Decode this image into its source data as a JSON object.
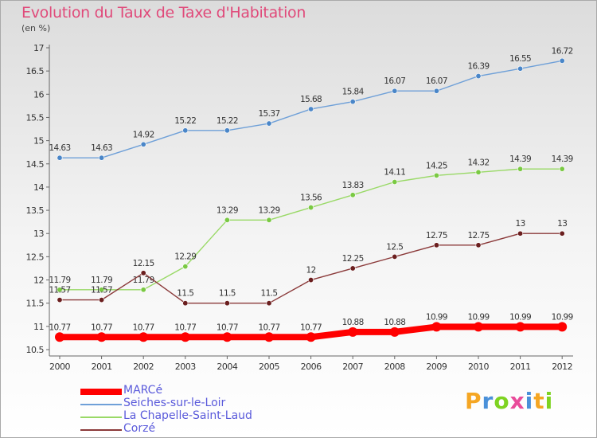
{
  "chart_data": {
    "type": "line",
    "title": "Evolution du Taux de Taxe d'Habitation",
    "subtitle": "(en %)",
    "x": [
      "2000",
      "2001",
      "2002",
      "2003",
      "2004",
      "2005",
      "2006",
      "2007",
      "2008",
      "2009",
      "2010",
      "2011",
      "2012"
    ],
    "ylim": [
      10.5,
      17
    ],
    "yticks": [
      "10.5",
      "11",
      "11.5",
      "12",
      "12.5",
      "13",
      "13.5",
      "14",
      "14.5",
      "15",
      "15.5",
      "16",
      "16.5",
      "17"
    ],
    "grid": false,
    "legend_position": "bottom-left",
    "series": [
      {
        "name": "MARCé",
        "color": "#ff0000",
        "values": [
          10.77,
          10.77,
          10.77,
          10.77,
          10.77,
          10.77,
          10.77,
          10.88,
          10.88,
          10.99,
          10.99,
          10.99,
          10.99
        ],
        "labels": [
          "10.77",
          "10.77",
          "10.77",
          "10.77",
          "10.77",
          "10.77",
          "10.77",
          "10.88",
          "10.88",
          "10.99",
          "10.99",
          "10.99",
          "10.99"
        ]
      },
      {
        "name": "Seiches-sur-le-Loir",
        "color": "#6fa0d8",
        "values": [
          14.63,
          14.63,
          14.92,
          15.22,
          15.22,
          15.37,
          15.68,
          15.84,
          16.07,
          16.07,
          16.39,
          16.55,
          16.72
        ],
        "labels": [
          "14.63",
          "14.63",
          "14.92",
          "15.22",
          "15.22",
          "15.37",
          "15.68",
          "15.84",
          "16.07",
          "16.07",
          "16.39",
          "16.55",
          "16.72"
        ]
      },
      {
        "name": "La Chapelle-Saint-Laud",
        "color": "#99d966",
        "values": [
          11.79,
          11.79,
          11.79,
          12.29,
          13.29,
          13.29,
          13.56,
          13.83,
          14.11,
          14.25,
          14.32,
          14.39,
          14.39
        ],
        "labels": [
          "11.79",
          "11.79",
          "11.79",
          "12.29",
          "13.29",
          "13.29",
          "13.56",
          "13.83",
          "14.11",
          "14.25",
          "14.32",
          "14.39",
          "14.39"
        ]
      },
      {
        "name": "Corzé",
        "color": "#8b3a3a",
        "values": [
          11.57,
          11.57,
          12.15,
          11.5,
          11.5,
          11.5,
          12,
          12.25,
          12.5,
          12.75,
          12.75,
          13,
          13
        ],
        "labels": [
          "11.57",
          "11.57",
          "12.15",
          "11.5",
          "11.5",
          "11.5",
          "12",
          "12.25",
          "12.5",
          "12.75",
          "12.75",
          "13",
          "13"
        ]
      }
    ]
  },
  "logo": {
    "text": "Proxiti",
    "colors": [
      "#f5a623",
      "#4a90d9",
      "#7ed321",
      "#e94b9a",
      "#4a90d9",
      "#f5a623",
      "#7ed321"
    ]
  }
}
